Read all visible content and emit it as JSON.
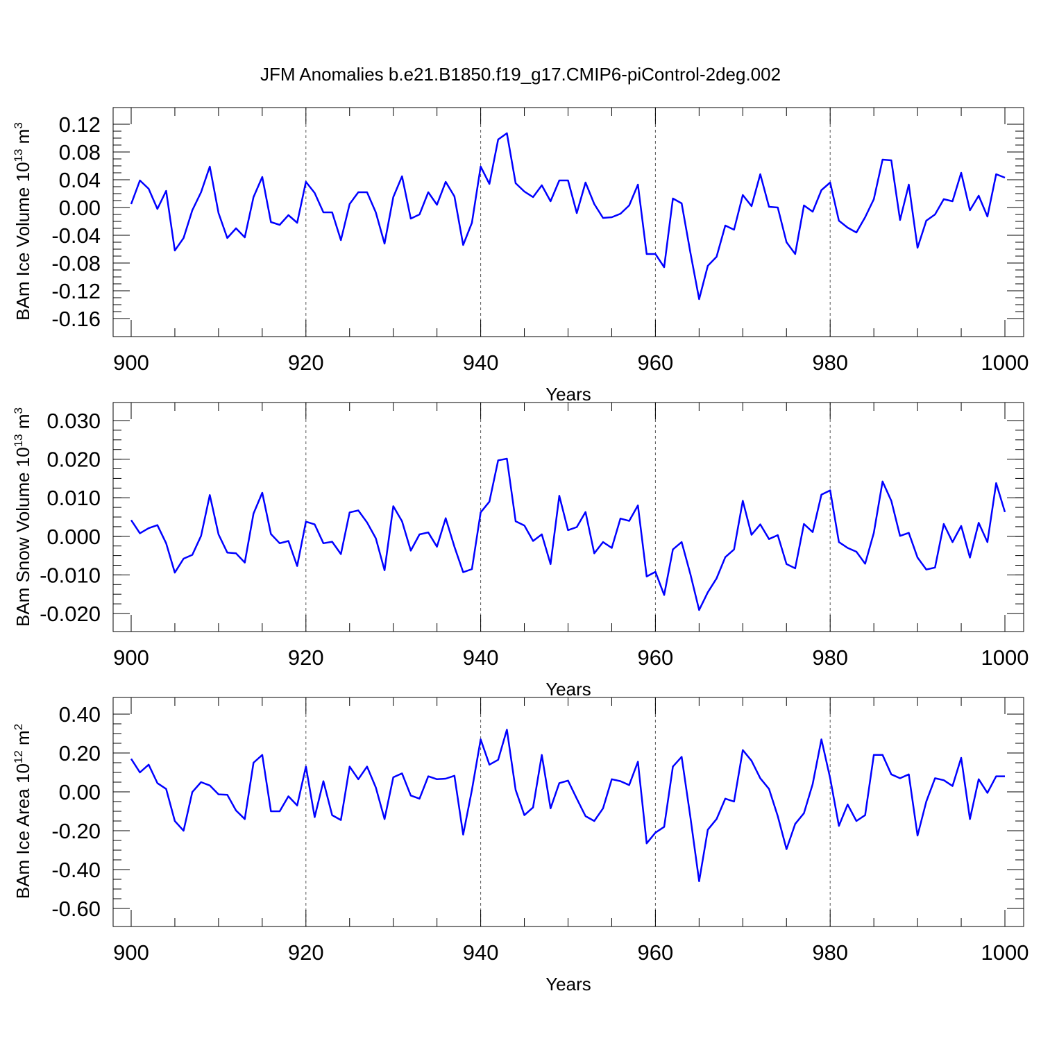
{
  "page": {
    "title": "JFM Anomalies b.e21.B1850.f19_g17.CMIP6-piControl-2deg.002"
  },
  "colors": {
    "series": "#0000ff",
    "axes": "#000000",
    "background": "#ffffff"
  },
  "chart_data": [
    {
      "type": "line",
      "title": "JFM Anomalies b.e21.B1850.f19_g17.CMIP6-piControl-2deg.002",
      "xlabel": "Years",
      "ylabel": {
        "prefix": "BAm Ice Volume 10",
        "exp": "13",
        "unit": " m",
        "unit_exp": "3"
      },
      "xlim": [
        900,
        1000
      ],
      "ylim": [
        -0.16,
        0.12
      ],
      "x_ticks": [
        "900",
        "920",
        "940",
        "960",
        "980",
        "1000"
      ],
      "y_ticks": [
        "0.12",
        "0.08",
        "0.04",
        "0.00",
        "-0.04",
        "-0.08",
        "-0.12",
        "-0.16"
      ],
      "y_tick_values": [
        0.12,
        0.08,
        0.04,
        0.0,
        -0.04,
        -0.08,
        -0.12,
        -0.16
      ],
      "grid": "vertical dashed at major x ticks",
      "x_start": 900,
      "x_step": 1,
      "values": [
        0.005,
        0.039,
        0.027,
        -0.002,
        0.024,
        -0.062,
        -0.044,
        -0.004,
        0.022,
        0.059,
        -0.008,
        -0.044,
        -0.03,
        -0.043,
        0.015,
        0.044,
        -0.021,
        -0.025,
        -0.011,
        -0.022,
        0.037,
        0.021,
        -0.007,
        -0.007,
        -0.047,
        0.005,
        0.022,
        0.022,
        -0.007,
        -0.052,
        0.015,
        0.045,
        -0.016,
        -0.01,
        0.022,
        0.004,
        0.037,
        0.016,
        -0.054,
        -0.022,
        0.059,
        0.034,
        0.098,
        0.107,
        0.035,
        0.023,
        0.015,
        0.032,
        0.009,
        0.039,
        0.039,
        -0.008,
        0.036,
        0.005,
        -0.015,
        -0.014,
        -0.009,
        0.003,
        0.033,
        -0.067,
        -0.067,
        -0.086,
        0.013,
        0.006,
        -0.065,
        -0.132,
        -0.084,
        -0.071,
        -0.026,
        -0.032,
        0.018,
        0.002,
        0.048,
        0.001,
        0.0,
        -0.05,
        -0.067,
        0.003,
        -0.006,
        0.025,
        0.036,
        -0.019,
        -0.029,
        -0.036,
        -0.014,
        0.012,
        0.069,
        0.068,
        -0.018,
        0.033,
        -0.058,
        -0.019,
        -0.01,
        0.012,
        0.009,
        0.05,
        -0.004,
        0.017,
        -0.013,
        0.048,
        0.043
      ]
    },
    {
      "type": "line",
      "xlabel": "Years",
      "ylabel": {
        "prefix": "BAm Snow Volume 10",
        "exp": "13",
        "unit": " m",
        "unit_exp": "3"
      },
      "xlim": [
        900,
        1000
      ],
      "ylim": [
        -0.02,
        0.03
      ],
      "x_ticks": [
        "900",
        "920",
        "940",
        "960",
        "980",
        "1000"
      ],
      "y_ticks": [
        "0.030",
        "0.020",
        "0.010",
        "0.000",
        "-0.010",
        "-0.020"
      ],
      "y_tick_values": [
        0.03,
        0.02,
        0.01,
        0.0,
        -0.01,
        -0.02
      ],
      "grid": "vertical dashed at major x ticks",
      "x_start": 900,
      "x_step": 1,
      "values": [
        0.0042,
        0.0008,
        0.0021,
        0.0029,
        -0.0018,
        -0.0094,
        -0.0058,
        -0.0048,
        0.0001,
        0.0107,
        0.0005,
        -0.0042,
        -0.0044,
        -0.0068,
        0.0059,
        0.0113,
        0.0006,
        -0.0018,
        -0.0012,
        -0.0077,
        0.0038,
        0.0031,
        -0.0018,
        -0.0014,
        -0.0046,
        0.0062,
        0.0067,
        0.0036,
        -0.0005,
        -0.0088,
        0.0078,
        0.0039,
        -0.0037,
        0.0005,
        0.001,
        -0.0027,
        0.0047,
        -0.0027,
        -0.0093,
        -0.0085,
        0.0062,
        0.009,
        0.0197,
        0.0201,
        0.0039,
        0.0028,
        -0.0012,
        0.0005,
        -0.0072,
        0.0105,
        0.0016,
        0.0024,
        0.0063,
        -0.0044,
        -0.0015,
        -0.003,
        0.0046,
        0.004,
        0.008,
        -0.0104,
        -0.0092,
        -0.0152,
        -0.0034,
        -0.0015,
        -0.0098,
        -0.0191,
        -0.0145,
        -0.0109,
        -0.0054,
        -0.0034,
        0.0092,
        0.0004,
        0.0031,
        -0.0007,
        0.0003,
        -0.0072,
        -0.0083,
        0.0032,
        0.0011,
        0.0108,
        0.0119,
        -0.0015,
        -0.003,
        -0.004,
        -0.0071,
        0.0009,
        0.0142,
        0.0092,
        0.0001,
        0.0009,
        -0.0055,
        -0.0086,
        -0.0081,
        0.0032,
        -0.0015,
        0.0027,
        -0.0055,
        0.0035,
        -0.0015,
        0.0138,
        0.0063
      ]
    },
    {
      "type": "line",
      "xlabel": "Years",
      "ylabel": {
        "prefix": "BAm Ice Area 10",
        "exp": "12",
        "unit": " m",
        "unit_exp": "2"
      },
      "xlim": [
        900,
        1000
      ],
      "ylim": [
        -0.6,
        0.4
      ],
      "x_ticks": [
        "900",
        "920",
        "940",
        "960",
        "980",
        "1000"
      ],
      "y_ticks": [
        "0.40",
        "0.20",
        "0.00",
        "-0.20",
        "-0.40",
        "-0.60"
      ],
      "y_tick_values": [
        0.4,
        0.2,
        0.0,
        -0.2,
        -0.4,
        -0.6
      ],
      "grid": "vertical dashed at major x ticks",
      "x_start": 900,
      "x_step": 1,
      "values": [
        0.17,
        0.1,
        0.14,
        0.045,
        0.015,
        -0.15,
        -0.2,
        -0.001,
        0.05,
        0.033,
        -0.013,
        -0.015,
        -0.096,
        -0.14,
        0.15,
        0.19,
        -0.1,
        -0.1,
        -0.023,
        -0.07,
        0.13,
        -0.13,
        0.055,
        -0.12,
        -0.145,
        0.13,
        0.065,
        0.13,
        0.023,
        -0.14,
        0.075,
        0.095,
        -0.019,
        -0.035,
        0.08,
        0.065,
        0.068,
        0.083,
        -0.22,
        0.01,
        0.27,
        0.14,
        0.165,
        0.32,
        0.01,
        -0.12,
        -0.08,
        0.19,
        -0.085,
        0.045,
        0.058,
        -0.035,
        -0.125,
        -0.15,
        -0.085,
        0.065,
        0.055,
        0.035,
        0.155,
        -0.265,
        -0.21,
        -0.18,
        0.13,
        0.18,
        -0.13,
        -0.46,
        -0.195,
        -0.14,
        -0.035,
        -0.05,
        0.215,
        0.16,
        0.07,
        0.015,
        -0.125,
        -0.295,
        -0.165,
        -0.11,
        0.04,
        0.27,
        0.07,
        -0.175,
        -0.065,
        -0.15,
        -0.12,
        0.19,
        0.19,
        0.09,
        0.07,
        0.09,
        -0.225,
        -0.05,
        0.07,
        0.06,
        0.03,
        0.175,
        -0.14,
        0.065,
        -0.005,
        0.08,
        0.08
      ]
    }
  ]
}
